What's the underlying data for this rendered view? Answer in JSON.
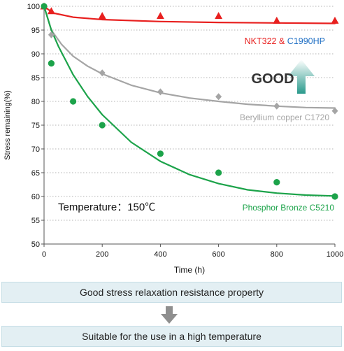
{
  "chart_data": {
    "type": "scatter",
    "xlabel": "Time (h)",
    "ylabel": "Stress remaining(%)",
    "xlim": [
      0,
      1000
    ],
    "ylim": [
      50,
      100
    ],
    "x_ticks": [
      0,
      200,
      400,
      600,
      800,
      1000
    ],
    "y_ticks": [
      50,
      55,
      60,
      65,
      70,
      75,
      80,
      85,
      90,
      95,
      100
    ],
    "grid": "horizontal dotted",
    "series": [
      {
        "name_parts": [
          "NKT322 & ",
          "C1990HP"
        ],
        "name_colors": [
          "#e8201f",
          "#1f6fc4"
        ],
        "color": "#e8201f",
        "marker": "triangle",
        "points": [
          [
            0,
            100
          ],
          [
            25,
            99
          ],
          [
            200,
            98
          ],
          [
            400,
            98
          ],
          [
            600,
            98
          ],
          [
            800,
            97
          ],
          [
            1000,
            97
          ]
        ],
        "fit": [
          [
            0,
            100
          ],
          [
            30,
            98.6
          ],
          [
            100,
            97.7
          ],
          [
            200,
            97.2
          ],
          [
            400,
            96.8
          ],
          [
            600,
            96.6
          ],
          [
            800,
            96.5
          ],
          [
            1000,
            96.4
          ]
        ]
      },
      {
        "name": "Beryllium copper C1720",
        "color": "#a5a5a5",
        "marker": "diamond",
        "points": [
          [
            0,
            100
          ],
          [
            25,
            94
          ],
          [
            200,
            86
          ],
          [
            400,
            82
          ],
          [
            600,
            81
          ],
          [
            800,
            79
          ],
          [
            1000,
            78
          ]
        ],
        "fit": [
          [
            0,
            100
          ],
          [
            25,
            95
          ],
          [
            60,
            92
          ],
          [
            100,
            89.5
          ],
          [
            150,
            87.4
          ],
          [
            200,
            85.8
          ],
          [
            300,
            83.4
          ],
          [
            400,
            81.8
          ],
          [
            500,
            80.7
          ],
          [
            600,
            80.0
          ],
          [
            700,
            79.4
          ],
          [
            800,
            79.0
          ],
          [
            900,
            78.7
          ],
          [
            1000,
            78.6
          ]
        ]
      },
      {
        "name": "Phosphor  Bronze C5210",
        "color": "#1ca34a",
        "marker": "circle",
        "points": [
          [
            0,
            100
          ],
          [
            25,
            88
          ],
          [
            100,
            80
          ],
          [
            200,
            75
          ],
          [
            400,
            69
          ],
          [
            600,
            65
          ],
          [
            800,
            63
          ],
          [
            1000,
            60
          ]
        ],
        "fit": [
          [
            0,
            100
          ],
          [
            25,
            95
          ],
          [
            50,
            91.5
          ],
          [
            100,
            85.6
          ],
          [
            150,
            81.0
          ],
          [
            200,
            77.2
          ],
          [
            300,
            71.4
          ],
          [
            400,
            67.4
          ],
          [
            500,
            64.6
          ],
          [
            600,
            62.7
          ],
          [
            700,
            61.4
          ],
          [
            800,
            60.7
          ],
          [
            900,
            60.3
          ],
          [
            1000,
            60.1
          ]
        ]
      }
    ],
    "annotations": {
      "temperature": "Temperature：150℃",
      "good": "GOOD"
    }
  },
  "boxes": {
    "top": "Good stress relaxation resistance property",
    "bottom": "Suitable for the use in a high temperature"
  },
  "colors": {
    "box_fill": "#e3eff3",
    "arrow_gray": "#8f8f8f",
    "good_arrow_top": "#2a9a8c",
    "good_arrow_bottom": "#ffffff"
  }
}
